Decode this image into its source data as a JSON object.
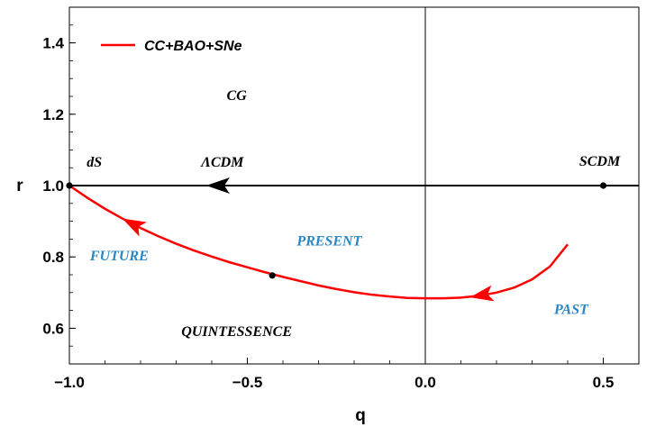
{
  "chart_data": {
    "type": "line",
    "xlabel": "q",
    "ylabel": "r",
    "xlim": [
      -1.0,
      0.6
    ],
    "ylim": [
      0.5,
      1.5
    ],
    "x_ticks": [
      -1.0,
      -0.5,
      0.0,
      0.5
    ],
    "x_tick_labels": [
      "−1.0",
      "−0.5",
      "0.0",
      "0.5"
    ],
    "y_ticks": [
      0.6,
      0.8,
      1.0,
      1.2,
      1.4
    ],
    "y_tick_labels": [
      "0.6",
      "0.8",
      "1.0",
      "1.2",
      "1.4"
    ],
    "grid": false,
    "legend_position": "top-left",
    "series": [
      {
        "name": "CC+BAO+SNe",
        "color": "#ff0000",
        "x": [
          0.4,
          0.35,
          0.3,
          0.25,
          0.2,
          0.15,
          0.1,
          0.05,
          0.0,
          -0.05,
          -0.1,
          -0.15,
          -0.2,
          -0.25,
          -0.3,
          -0.35,
          -0.4,
          -0.45,
          -0.5,
          -0.55,
          -0.6,
          -0.65,
          -0.7,
          -0.75,
          -0.8,
          -0.85,
          -0.9,
          -0.95,
          -1.0
        ],
        "y": [
          0.835,
          0.773,
          0.737,
          0.714,
          0.7,
          0.691,
          0.686,
          0.684,
          0.684,
          0.685,
          0.689,
          0.694,
          0.701,
          0.71,
          0.72,
          0.732,
          0.744,
          0.757,
          0.771,
          0.785,
          0.801,
          0.818,
          0.837,
          0.858,
          0.881,
          0.907,
          0.935,
          0.966,
          1.0
        ],
        "arrows_at_x": [
          0.16,
          -0.82
        ]
      },
      {
        "name": "",
        "color": "#000000",
        "x": [
          0.6,
          -1.0
        ],
        "y": [
          1.0,
          1.0
        ],
        "arrows_at_x": [
          -0.58
        ]
      }
    ],
    "points": [
      {
        "x": -1.0,
        "y": 1.0,
        "color": "#000000"
      },
      {
        "x": 0.5,
        "y": 1.0,
        "color": "#000000"
      },
      {
        "x": -0.43,
        "y": 0.748,
        "color": "#000000"
      }
    ],
    "reference_lines": {
      "vertical_x": 0.0
    },
    "annotations": [
      {
        "text": "CG",
        "x": -0.53,
        "y": 1.24,
        "color": "#000000"
      },
      {
        "text": "ΛCDM",
        "x": -0.57,
        "y": 1.053,
        "color": "#000000"
      },
      {
        "text": "dS",
        "x": -0.93,
        "y": 1.053,
        "color": "#000000"
      },
      {
        "text": "SCDM",
        "x": 0.49,
        "y": 1.055,
        "color": "#000000"
      },
      {
        "text": "PRESENT",
        "x": -0.27,
        "y": 0.832,
        "color": "#2a86c2"
      },
      {
        "text": "FUTURE",
        "x": -0.86,
        "y": 0.79,
        "color": "#2a86c2"
      },
      {
        "text": "PAST",
        "x": 0.41,
        "y": 0.64,
        "color": "#2a86c2"
      },
      {
        "text": "QUINTESSENCE",
        "x": -0.53,
        "y": 0.578,
        "color": "#000000"
      }
    ]
  }
}
